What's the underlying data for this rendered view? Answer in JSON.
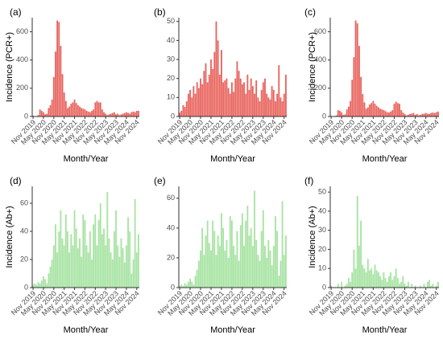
{
  "chart_data": [
    {
      "type": "bar",
      "panel_label": "(a)",
      "ylabel": "Incidence (PCR+)",
      "xlabel": "Month/Year",
      "ylim": [
        0,
        700
      ],
      "yticks": [
        0,
        200,
        400,
        600
      ],
      "bar_color": "#e8625c",
      "x_tick_labels": [
        "Nov 2019",
        "May 2020",
        "Nov 2020",
        "May 2021",
        "Nov 2021",
        "May 2022",
        "Nov 2022",
        "May 2023",
        "Nov 2023",
        "May 2024",
        "Nov 2024"
      ],
      "x": [
        "2019-11",
        "2019-12",
        "2020-01",
        "2020-02",
        "2020-03",
        "2020-04",
        "2020-05",
        "2020-06",
        "2020-07",
        "2020-08",
        "2020-09",
        "2020-10",
        "2020-11",
        "2020-12",
        "2021-01",
        "2021-02",
        "2021-03",
        "2021-04",
        "2021-05",
        "2021-06",
        "2021-07",
        "2021-08",
        "2021-09",
        "2021-10",
        "2021-11",
        "2021-12",
        "2022-01",
        "2022-02",
        "2022-03",
        "2022-04",
        "2022-05",
        "2022-06",
        "2022-07",
        "2022-08",
        "2022-09",
        "2022-10",
        "2022-11",
        "2022-12",
        "2023-01",
        "2023-02",
        "2023-03",
        "2023-04",
        "2023-05",
        "2023-06",
        "2023-07",
        "2023-08",
        "2023-09",
        "2023-10",
        "2023-11",
        "2023-12",
        "2024-01",
        "2024-02",
        "2024-03",
        "2024-04",
        "2024-05",
        "2024-06",
        "2024-07",
        "2024-08",
        "2024-09",
        "2024-10",
        "2024-11",
        "2024-12"
      ],
      "values": [
        5,
        2,
        1,
        10,
        50,
        40,
        30,
        15,
        20,
        60,
        80,
        120,
        280,
        460,
        680,
        670,
        500,
        300,
        170,
        110,
        60,
        70,
        90,
        100,
        120,
        95,
        80,
        70,
        60,
        55,
        50,
        40,
        35,
        30,
        40,
        50,
        100,
        110,
        100,
        100,
        50,
        30,
        20,
        10,
        15,
        20,
        25,
        30,
        15,
        20,
        10,
        15,
        20,
        25,
        30,
        25,
        20,
        30,
        35,
        30,
        40,
        40
      ]
    },
    {
      "type": "bar",
      "panel_label": "(b)",
      "ylabel": "",
      "xlabel": "Month/Year",
      "ylim": [
        0,
        52
      ],
      "yticks": [
        0,
        10,
        20,
        30,
        40,
        50
      ],
      "bar_color": "#e8625c",
      "x_tick_labels": [
        "Nov 2019",
        "May 2020",
        "Nov 2020",
        "May 2021",
        "Nov 2021",
        "May 2022",
        "Nov 2022",
        "May 2023",
        "Nov 2023",
        "May 2024",
        "Nov 2024"
      ],
      "x": [
        "2019-11",
        "2019-12",
        "2020-01",
        "2020-02",
        "2020-03",
        "2020-04",
        "2020-05",
        "2020-06",
        "2020-07",
        "2020-08",
        "2020-09",
        "2020-10",
        "2020-11",
        "2020-12",
        "2021-01",
        "2021-02",
        "2021-03",
        "2021-04",
        "2021-05",
        "2021-06",
        "2021-07",
        "2021-08",
        "2021-09",
        "2021-10",
        "2021-11",
        "2021-12",
        "2022-01",
        "2022-02",
        "2022-03",
        "2022-04",
        "2022-05",
        "2022-06",
        "2022-07",
        "2022-08",
        "2022-09",
        "2022-10",
        "2022-11",
        "2022-12",
        "2023-01",
        "2023-02",
        "2023-03",
        "2023-04",
        "2023-05",
        "2023-06",
        "2023-07",
        "2023-08",
        "2023-09",
        "2023-10",
        "2023-11",
        "2023-12",
        "2024-01",
        "2024-02",
        "2024-03",
        "2024-04",
        "2024-05",
        "2024-06",
        "2024-07",
        "2024-08",
        "2024-09",
        "2024-10",
        "2024-11",
        "2024-12"
      ],
      "values": [
        2,
        3,
        6,
        5,
        8,
        12,
        14,
        10,
        16,
        12,
        18,
        15,
        20,
        17,
        24,
        28,
        18,
        22,
        30,
        25,
        34,
        50,
        40,
        22,
        35,
        18,
        19,
        20,
        15,
        12,
        18,
        13,
        20,
        29,
        24,
        20,
        17,
        18,
        12,
        22,
        14,
        20,
        16,
        12,
        19,
        10,
        8,
        14,
        18,
        20,
        12,
        10,
        9,
        16,
        14,
        8,
        12,
        27,
        10,
        8,
        12,
        22
      ]
    },
    {
      "type": "bar",
      "panel_label": "(c)",
      "ylabel": "Incidence (PCR+)",
      "xlabel": "Month/Year",
      "ylim": [
        0,
        700
      ],
      "yticks": [
        0,
        200,
        400,
        600
      ],
      "bar_color": "#e8625c",
      "x_tick_labels": [
        "Nov 2019",
        "May 2020",
        "Nov 2020",
        "May 2021",
        "Nov 2021",
        "May 2022",
        "Nov 2022",
        "May 2023",
        "Nov 2023",
        "May 2024",
        "Nov 2024"
      ],
      "x": [
        "2019-11",
        "2019-12",
        "2020-01",
        "2020-02",
        "2020-03",
        "2020-04",
        "2020-05",
        "2020-06",
        "2020-07",
        "2020-08",
        "2020-09",
        "2020-10",
        "2020-11",
        "2020-12",
        "2021-01",
        "2021-02",
        "2021-03",
        "2021-04",
        "2021-05",
        "2021-06",
        "2021-07",
        "2021-08",
        "2021-09",
        "2021-10",
        "2021-11",
        "2021-12",
        "2022-01",
        "2022-02",
        "2022-03",
        "2022-04",
        "2022-05",
        "2022-06",
        "2022-07",
        "2022-08",
        "2022-09",
        "2022-10",
        "2022-11",
        "2022-12",
        "2023-01",
        "2023-02",
        "2023-03",
        "2023-04",
        "2023-05",
        "2023-06",
        "2023-07",
        "2023-08",
        "2023-09",
        "2023-10",
        "2023-11",
        "2023-12",
        "2024-01",
        "2024-02",
        "2024-03",
        "2024-04",
        "2024-05",
        "2024-06",
        "2024-07",
        "2024-08",
        "2024-09",
        "2024-10",
        "2024-11",
        "2024-12"
      ],
      "values": [
        4,
        2,
        1,
        8,
        45,
        40,
        30,
        12,
        15,
        50,
        70,
        110,
        260,
        420,
        680,
        660,
        500,
        280,
        160,
        100,
        55,
        65,
        85,
        95,
        110,
        90,
        75,
        65,
        55,
        50,
        45,
        38,
        30,
        28,
        35,
        45,
        90,
        105,
        95,
        90,
        45,
        28,
        18,
        8,
        12,
        18,
        20,
        25,
        12,
        18,
        8,
        12,
        18,
        20,
        25,
        20,
        18,
        25,
        28,
        25,
        30,
        35
      ]
    },
    {
      "type": "bar",
      "panel_label": "(d)",
      "ylabel": "Incidence (Ab+)",
      "xlabel": "Month/Year",
      "ylim": [
        0,
        72
      ],
      "yticks": [
        0,
        20,
        40,
        60
      ],
      "bar_color": "#a6e3a1",
      "x_tick_labels": [
        "Nov 2019",
        "May 2020",
        "Nov 2020",
        "May 2021",
        "Nov 2021",
        "May 2022",
        "Nov 2022",
        "May 2023",
        "Nov 2023",
        "May 2024",
        "Nov 2024"
      ],
      "x": [
        "2019-11",
        "2019-12",
        "2020-01",
        "2020-02",
        "2020-03",
        "2020-04",
        "2020-05",
        "2020-06",
        "2020-07",
        "2020-08",
        "2020-09",
        "2020-10",
        "2020-11",
        "2020-12",
        "2021-01",
        "2021-02",
        "2021-03",
        "2021-04",
        "2021-05",
        "2021-06",
        "2021-07",
        "2021-08",
        "2021-09",
        "2021-10",
        "2021-11",
        "2021-12",
        "2022-01",
        "2022-02",
        "2022-03",
        "2022-04",
        "2022-05",
        "2022-06",
        "2022-07",
        "2022-08",
        "2022-09",
        "2022-10",
        "2022-11",
        "2022-12",
        "2023-01",
        "2023-02",
        "2023-03",
        "2023-04",
        "2023-05",
        "2023-06",
        "2023-07",
        "2023-08",
        "2023-09",
        "2023-10",
        "2023-11",
        "2023-12",
        "2024-01",
        "2024-02",
        "2024-03",
        "2024-04",
        "2024-05",
        "2024-06",
        "2024-07",
        "2024-08",
        "2024-09",
        "2024-10",
        "2024-11",
        "2024-12"
      ],
      "values": [
        2,
        3,
        2,
        4,
        3,
        5,
        8,
        6,
        3,
        10,
        15,
        20,
        30,
        45,
        25,
        40,
        55,
        35,
        30,
        52,
        40,
        25,
        38,
        30,
        55,
        42,
        28,
        35,
        22,
        52,
        48,
        30,
        25,
        40,
        20,
        45,
        52,
        30,
        48,
        60,
        38,
        42,
        30,
        68,
        35,
        25,
        20,
        40,
        55,
        30,
        22,
        35,
        28,
        18,
        30,
        50,
        40,
        10,
        20,
        63,
        25,
        38
      ]
    },
    {
      "type": "bar",
      "panel_label": "(e)",
      "ylabel": "",
      "xlabel": "Month/Year",
      "ylim": [
        0,
        68
      ],
      "yticks": [
        0,
        20,
        40,
        60
      ],
      "bar_color": "#a6e3a1",
      "x_tick_labels": [
        "Nov 2019",
        "May 2020",
        "Nov 2020",
        "May 2021",
        "Nov 2021",
        "May 2022",
        "Nov 2022",
        "May 2023",
        "Nov 2023",
        "May 2024",
        "Nov 2024"
      ],
      "x": [
        "2019-11",
        "2019-12",
        "2020-01",
        "2020-02",
        "2020-03",
        "2020-04",
        "2020-05",
        "2020-06",
        "2020-07",
        "2020-08",
        "2020-09",
        "2020-10",
        "2020-11",
        "2020-12",
        "2021-01",
        "2021-02",
        "2021-03",
        "2021-04",
        "2021-05",
        "2021-06",
        "2021-07",
        "2021-08",
        "2021-09",
        "2021-10",
        "2021-11",
        "2021-12",
        "2022-01",
        "2022-02",
        "2022-03",
        "2022-04",
        "2022-05",
        "2022-06",
        "2022-07",
        "2022-08",
        "2022-09",
        "2022-10",
        "2022-11",
        "2022-12",
        "2023-01",
        "2023-02",
        "2023-03",
        "2023-04",
        "2023-05",
        "2023-06",
        "2023-07",
        "2023-08",
        "2023-09",
        "2023-10",
        "2023-11",
        "2023-12",
        "2024-01",
        "2024-02",
        "2024-03",
        "2024-04",
        "2024-05",
        "2024-06",
        "2024-07",
        "2024-08",
        "2024-09",
        "2024-10",
        "2024-11",
        "2024-12"
      ],
      "values": [
        1,
        2,
        1,
        3,
        2,
        4,
        6,
        4,
        2,
        8,
        12,
        18,
        25,
        40,
        22,
        35,
        45,
        30,
        25,
        45,
        38,
        22,
        35,
        28,
        50,
        40,
        25,
        32,
        20,
        48,
        45,
        28,
        22,
        38,
        18,
        42,
        50,
        28,
        45,
        55,
        35,
        40,
        28,
        65,
        32,
        22,
        18,
        38,
        52,
        28,
        20,
        32,
        25,
        15,
        28,
        48,
        38,
        8,
        18,
        58,
        22,
        35
      ]
    },
    {
      "type": "bar",
      "panel_label": "(f)",
      "ylabel": "Incidence (Ab+)",
      "xlabel": "Month/Year",
      "ylim": [
        0,
        53
      ],
      "yticks": [
        0,
        10,
        20,
        30,
        40,
        50
      ],
      "bar_color": "#a6e3a1",
      "x_tick_labels": [
        "Nov 2019",
        "May 2020",
        "Nov 2020",
        "May 2021",
        "Nov 2021",
        "May 2022",
        "Nov 2022",
        "May 2023",
        "Nov 2023",
        "May 2024",
        "Nov 2024"
      ],
      "x": [
        "2019-11",
        "2019-12",
        "2020-01",
        "2020-02",
        "2020-03",
        "2020-04",
        "2020-05",
        "2020-06",
        "2020-07",
        "2020-08",
        "2020-09",
        "2020-10",
        "2020-11",
        "2020-12",
        "2021-01",
        "2021-02",
        "2021-03",
        "2021-04",
        "2021-05",
        "2021-06",
        "2021-07",
        "2021-08",
        "2021-09",
        "2021-10",
        "2021-11",
        "2021-12",
        "2022-01",
        "2022-02",
        "2022-03",
        "2022-04",
        "2022-05",
        "2022-06",
        "2022-07",
        "2022-08",
        "2022-09",
        "2022-10",
        "2022-11",
        "2022-12",
        "2023-01",
        "2023-02",
        "2023-03",
        "2023-04",
        "2023-05",
        "2023-06",
        "2023-07",
        "2023-08",
        "2023-09",
        "2023-10",
        "2023-11",
        "2023-12",
        "2024-01",
        "2024-02",
        "2024-03",
        "2024-04",
        "2024-05",
        "2024-06",
        "2024-07",
        "2024-08",
        "2024-09",
        "2024-10",
        "2024-11",
        "2024-12"
      ],
      "values": [
        1,
        0,
        0,
        0,
        2,
        0,
        3,
        0,
        1,
        2,
        5,
        3,
        8,
        20,
        10,
        48,
        22,
        35,
        12,
        10,
        8,
        15,
        9,
        10,
        7,
        12,
        9,
        8,
        6,
        4,
        8,
        5,
        3,
        6,
        8,
        4,
        6,
        10,
        5,
        2,
        3,
        6,
        2,
        1,
        3,
        0,
        2,
        0,
        1,
        0,
        0,
        1,
        0,
        2,
        0,
        3,
        4,
        1,
        2,
        0,
        1,
        3
      ]
    }
  ]
}
